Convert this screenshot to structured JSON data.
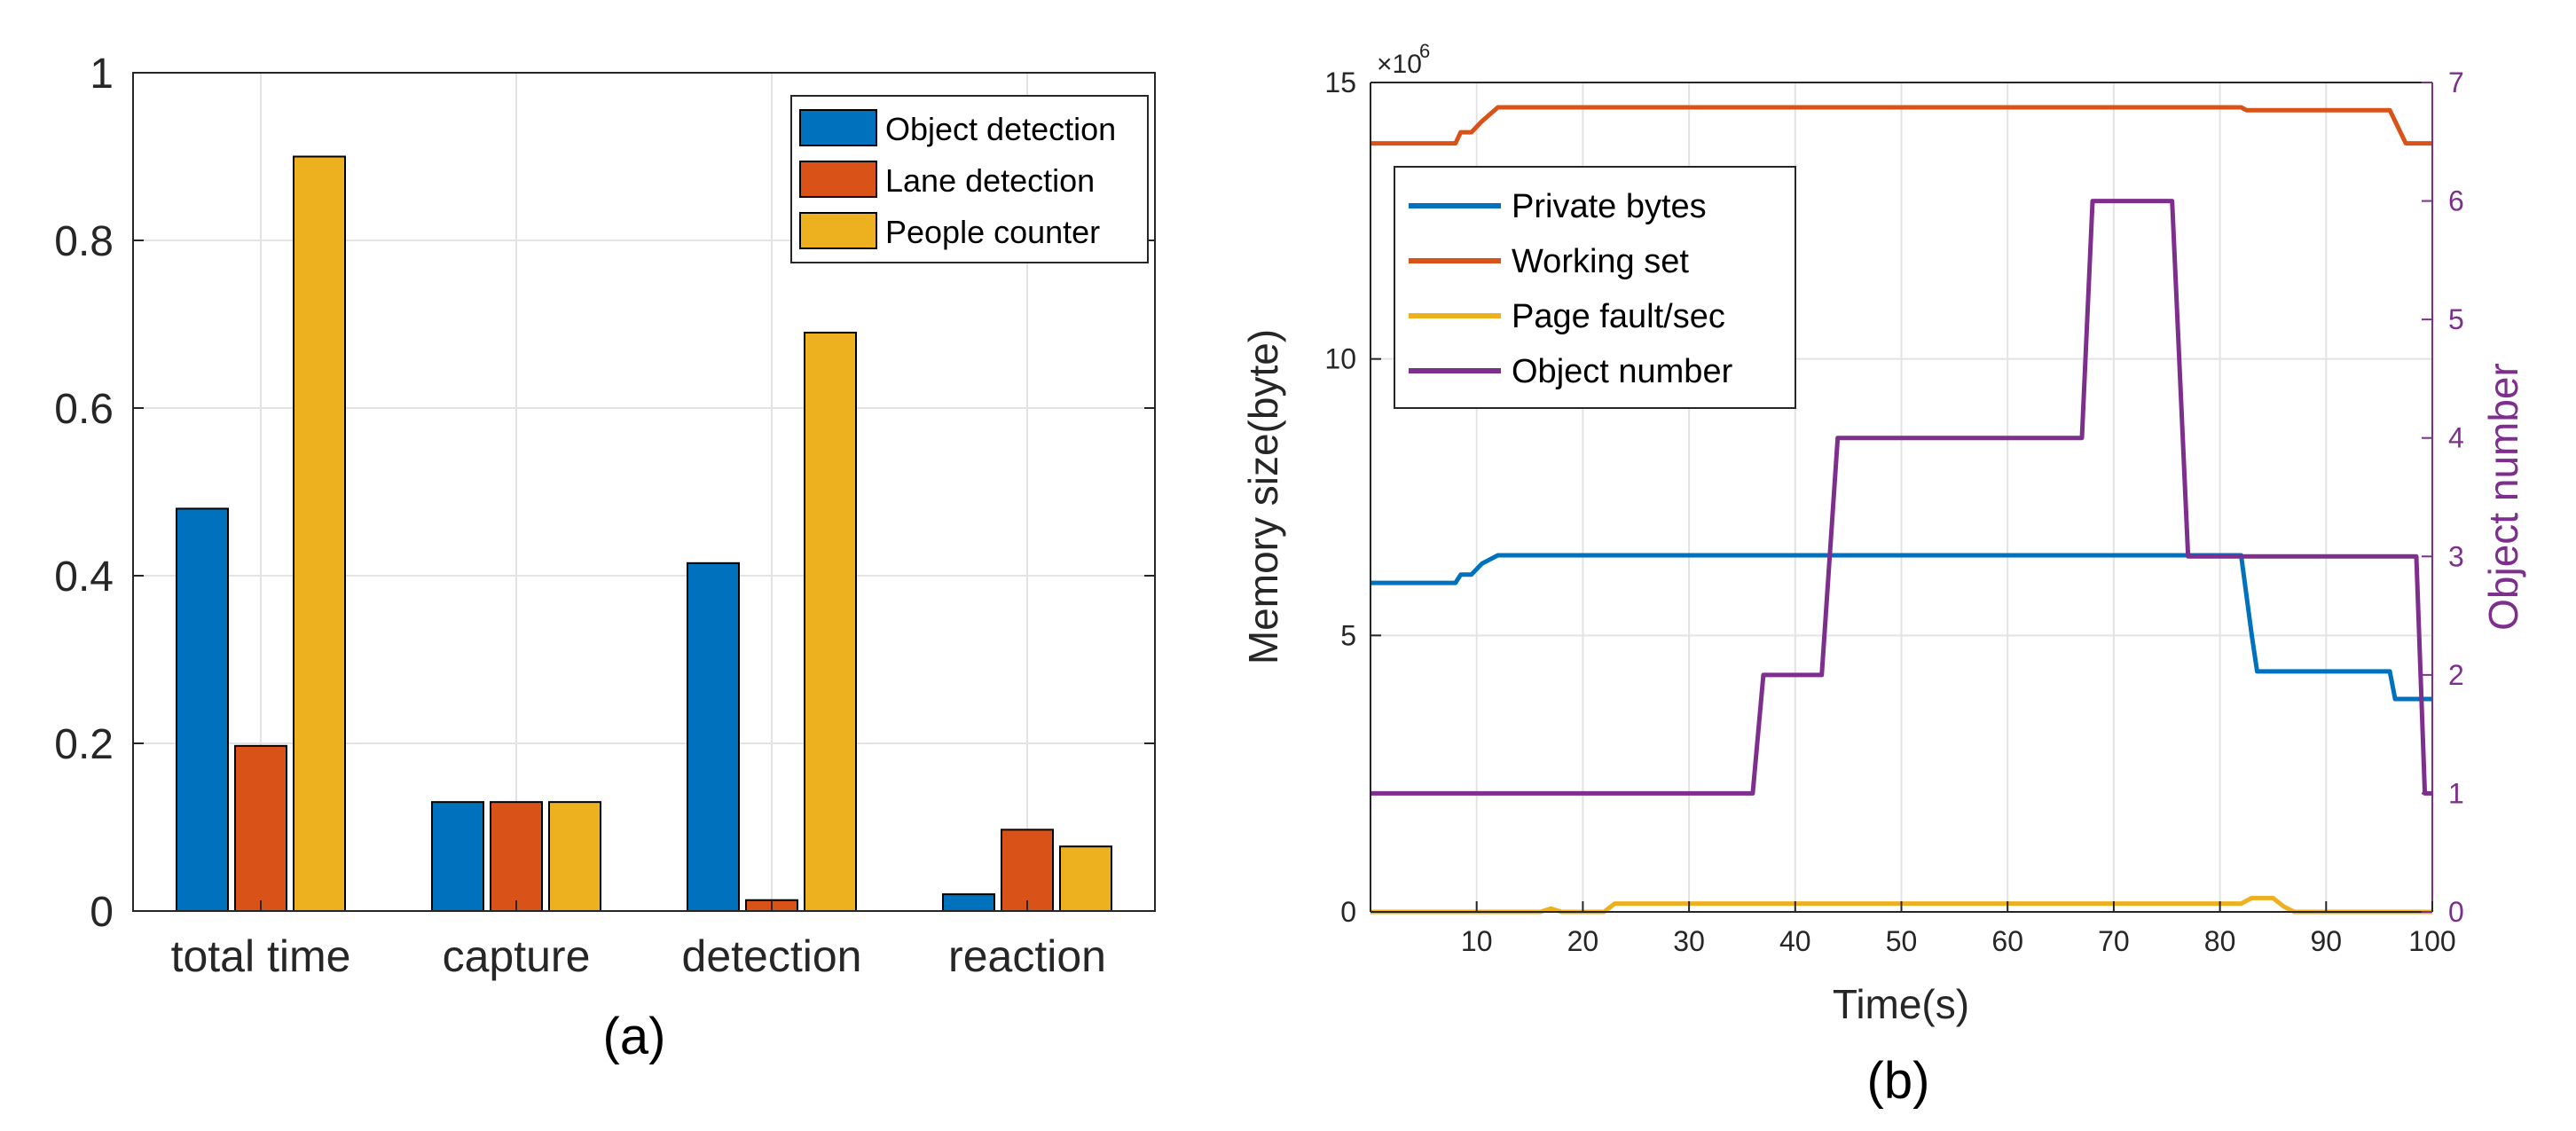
{
  "chart_data": [
    {
      "id": "a",
      "type": "bar",
      "caption": "(a)",
      "categories": [
        "total time",
        "capture",
        "detection",
        "reaction"
      ],
      "series": [
        {
          "name": "Object detection",
          "color": "#0072BD",
          "values": [
            0.48,
            0.13,
            0.415,
            0.02
          ]
        },
        {
          "name": "Lane detection",
          "color": "#D95319",
          "values": [
            0.197,
            0.13,
            0.013,
            0.097
          ]
        },
        {
          "name": "People counter",
          "color": "#EDB120",
          "values": [
            0.9,
            0.13,
            0.69,
            0.077
          ]
        }
      ],
      "ylim": [
        0,
        1
      ],
      "yticks": [
        0,
        0.2,
        0.4,
        0.6,
        0.8,
        1
      ],
      "ytick_labels": [
        "0",
        "0.2",
        "0.4",
        "0.6",
        "0.8",
        "1"
      ],
      "grid": true,
      "legend_position": "top-right",
      "xlabel": "",
      "ylabel": ""
    },
    {
      "id": "b",
      "type": "line",
      "caption": "(b)",
      "xlabel": "Time(s)",
      "ylabel_left": "Memory size(byte)",
      "ylabel_right": "Object number",
      "exponent_label": "×10",
      "exponent_power": "6",
      "xlim": [
        0,
        100
      ],
      "xticks": [
        10,
        20,
        30,
        40,
        50,
        60,
        70,
        80,
        90,
        100
      ],
      "xtick_labels": [
        "10",
        "20",
        "30",
        "40",
        "50",
        "60",
        "70",
        "80",
        "90",
        "100"
      ],
      "ylim_left": [
        0,
        15
      ],
      "yticks_left": [
        0,
        5,
        10,
        15
      ],
      "ytick_labels_left": [
        "0",
        "5",
        "10",
        "15"
      ],
      "ylim_right": [
        0,
        7
      ],
      "yticks_right": [
        0,
        1,
        2,
        3,
        4,
        5,
        6,
        7
      ],
      "ytick_labels_right": [
        "0",
        "1",
        "2",
        "3",
        "4",
        "5",
        "6",
        "7"
      ],
      "right_axis_color": "#7E2F8E",
      "grid": true,
      "legend_position": "top-left",
      "series": [
        {
          "name": "Private bytes",
          "axis": "left",
          "color": "#0072BD",
          "x": [
            0,
            8,
            8.5,
            9.5,
            10.5,
            12,
            82,
            83,
            83.5,
            96,
            96.5,
            100
          ],
          "y": [
            5.95,
            5.95,
            6.1,
            6.1,
            6.3,
            6.45,
            6.45,
            5.0,
            4.35,
            4.35,
            3.85,
            3.85
          ]
        },
        {
          "name": "Working set",
          "axis": "left",
          "color": "#D95319",
          "x": [
            0,
            8,
            8.5,
            9.5,
            10.5,
            12,
            82,
            82.5,
            96,
            97.5,
            100
          ],
          "y": [
            13.9,
            13.9,
            14.1,
            14.1,
            14.3,
            14.55,
            14.55,
            14.5,
            14.5,
            13.9,
            13.9
          ]
        },
        {
          "name": "Page fault/sec",
          "axis": "left",
          "color": "#EDB120",
          "x": [
            0,
            16,
            17,
            18,
            22,
            23,
            24,
            82,
            83,
            85,
            86,
            87,
            88,
            90,
            100
          ],
          "y": [
            0.0,
            0.0,
            0.06,
            0.0,
            0.0,
            0.15,
            0.15,
            0.15,
            0.25,
            0.25,
            0.1,
            0.0,
            0.0,
            0.0,
            0.0
          ]
        },
        {
          "name": "Object number",
          "axis": "right",
          "color": "#7E2F8E",
          "x": [
            0,
            36,
            37,
            42.5,
            44,
            67,
            68,
            75.5,
            77,
            98.5,
            99.3,
            100
          ],
          "y": [
            1,
            1,
            2,
            2,
            4,
            4,
            6,
            6,
            3,
            3,
            1,
            1
          ]
        }
      ]
    }
  ]
}
